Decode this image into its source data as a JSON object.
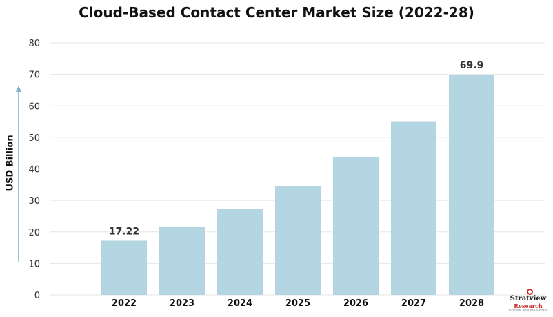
{
  "chart_data": {
    "type": "bar",
    "title": "Cloud-Based Contact Center Market Size (2022-28)",
    "ylabel": "USD Billion",
    "xlabel": "",
    "categories": [
      "2022",
      "2023",
      "2024",
      "2025",
      "2026",
      "2027",
      "2028"
    ],
    "values": [
      17.22,
      21.7,
      27.4,
      34.6,
      43.7,
      55.1,
      69.9
    ],
    "data_labels": [
      "17.22",
      "",
      "",
      "",
      "",
      "",
      "69.9"
    ],
    "ylim": [
      0,
      80
    ],
    "yticks": [
      0,
      10,
      20,
      30,
      40,
      50,
      60,
      70,
      80
    ],
    "grid": true,
    "bar_color": "#b3d6e2",
    "grid_color": "#e6e6e6",
    "axis_arrow_color": "#7fb3c7"
  },
  "logo": {
    "line1": "Stratview",
    "line2": "Research",
    "line3": "Strategic Insights Delivered"
  }
}
